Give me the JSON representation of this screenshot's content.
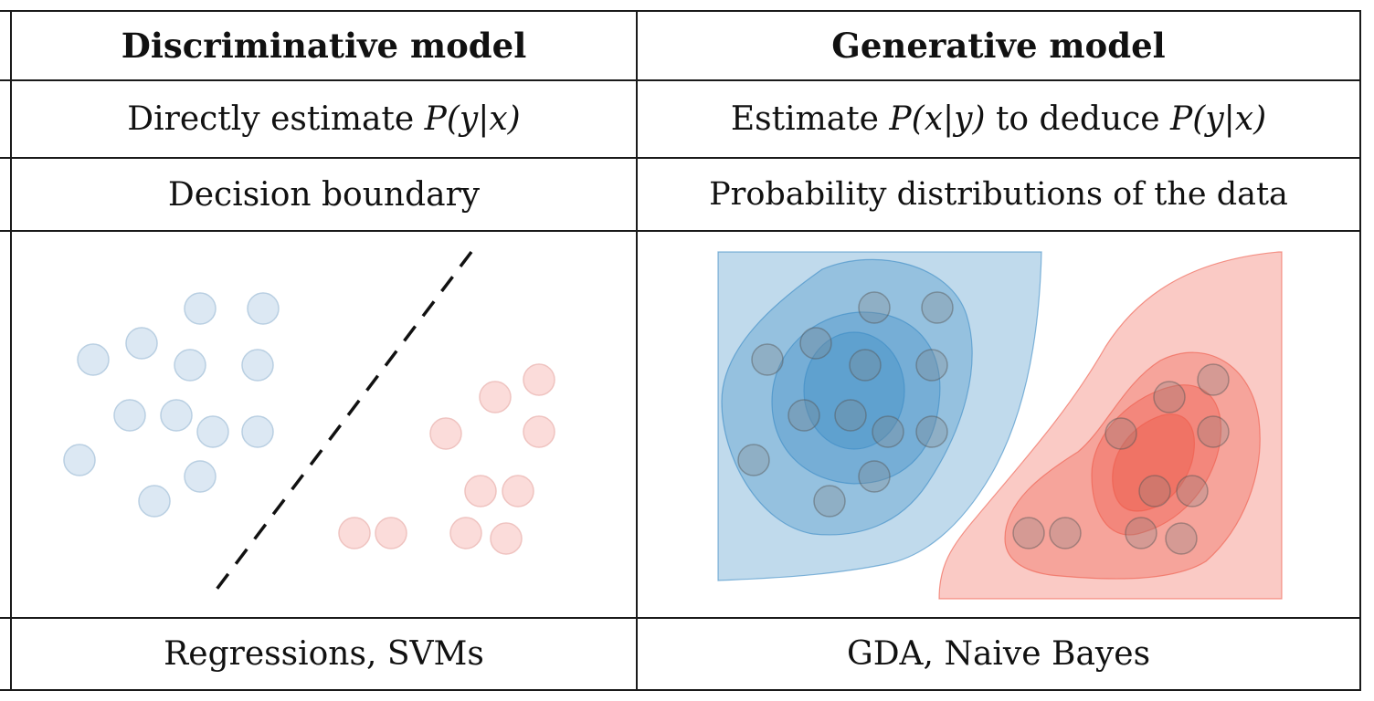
{
  "table": {
    "header": {
      "discriminative": "Discriminative model",
      "generative": "Generative model"
    },
    "goal": {
      "discriminative_prefix": "Directly estimate ",
      "discriminative_math": "P(y|x)",
      "generative_prefix": "Estimate ",
      "generative_math1": "P(x|y)",
      "generative_mid": " to deduce ",
      "generative_math2": "P(y|x)"
    },
    "learns": {
      "discriminative": "Decision boundary",
      "generative": "Probability distributions of the data"
    },
    "examples": {
      "discriminative": "Regressions, SVMs",
      "generative": "GDA, Naive Bayes"
    }
  },
  "colors": {
    "blue_point": "#dce8f3",
    "red_point": "#fbdcda",
    "blue_contour": "#3b8bc4",
    "red_contour": "#ee5a4a",
    "boundary": "#111111"
  }
}
